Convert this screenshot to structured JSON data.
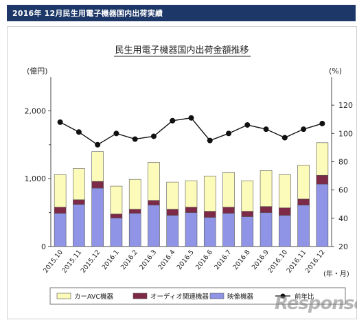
{
  "header": {
    "title": "2016年 12月民生用電子機器国内出荷実績"
  },
  "chart_data": {
    "type": "bar",
    "title": "民生用電子機器国内出荷金額推移",
    "left_unit": "(億円)",
    "right_unit": "(%)",
    "x_unit": "(年・月)",
    "categories": [
      "2015.10",
      "2015.11",
      "2015.12",
      "2016.1",
      "2016.2",
      "2016.3",
      "2016.4",
      "2016.5",
      "2016.6",
      "2016.7",
      "2016.8",
      "2016.9",
      "2016.10",
      "2016.11",
      "2016.12"
    ],
    "left_ylim": [
      0,
      2500
    ],
    "left_ticks": [
      "0",
      "1,000",
      "2,000"
    ],
    "right_ylim": [
      20,
      140
    ],
    "right_ticks": [
      "20",
      "40",
      "60",
      "80",
      "100",
      "120"
    ],
    "series": [
      {
        "name": "映像機器",
        "color": "#8f94e6",
        "values": [
          490,
          620,
          860,
          420,
          490,
          610,
          460,
          500,
          430,
          490,
          440,
          500,
          460,
          610,
          920
        ]
      },
      {
        "name": "オーディオ関連機器",
        "color": "#7d2a48",
        "values": [
          90,
          70,
          100,
          60,
          60,
          70,
          90,
          80,
          90,
          90,
          80,
          90,
          110,
          90,
          130
        ]
      },
      {
        "name": "カーAVC機器",
        "color": "#fdfbb9",
        "values": [
          480,
          460,
          440,
          410,
          440,
          560,
          400,
          390,
          520,
          510,
          450,
          530,
          490,
          500,
          480
        ]
      }
    ],
    "line": {
      "name": "前年比",
      "color": "#111111",
      "values": [
        108,
        101,
        92,
        100,
        96,
        98,
        109,
        111,
        95,
        100,
        106,
        103,
        97,
        103,
        107
      ]
    }
  },
  "watermark": "Response."
}
